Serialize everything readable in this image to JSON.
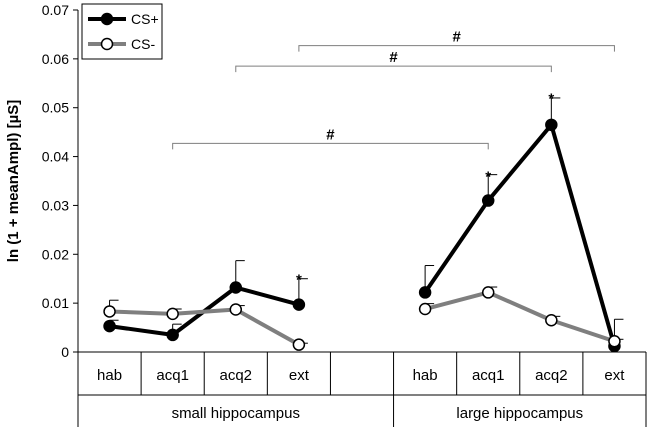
{
  "chart_data": {
    "type": "line",
    "title": "",
    "ylabel": "ln (1 + meanAmpl) [µS]",
    "ylim": [
      0,
      0.07
    ],
    "yticks": [
      0,
      0.01,
      0.02,
      0.03,
      0.04,
      0.05,
      0.06,
      0.07
    ],
    "ytick_labels": [
      "0",
      "0.01",
      "0.02",
      "0.03",
      "0.04",
      "0.05",
      "0.06",
      "0.07"
    ],
    "categories": [
      "hab",
      "acq1",
      "acq2",
      "ext",
      "",
      "hab",
      "acq1",
      "acq2",
      "ext"
    ],
    "groups": [
      {
        "label": "small hippocampus",
        "span": [
          0,
          4
        ]
      },
      {
        "label": "large hippocampus",
        "span": [
          5,
          8
        ]
      }
    ],
    "grid": false,
    "legend": {
      "placement": "top-left"
    },
    "series": [
      {
        "name": "CS+",
        "color": "#000000",
        "marker": "filled-circle",
        "segments": [
          {
            "x": [
              0,
              1,
              2,
              3
            ],
            "y": [
              0.0053,
              0.0035,
              0.0132,
              0.0097
            ],
            "err": [
              0.0012,
              0.0022,
              0.0055,
              0.0053
            ]
          },
          {
            "x": [
              5,
              6,
              7,
              8
            ],
            "y": [
              0.0122,
              0.031,
              0.0465,
              0.0012
            ],
            "err": [
              0.0055,
              0.0053,
              0.0055,
              0.0055
            ]
          }
        ]
      },
      {
        "name": "CS-",
        "color": "#7f7f7f",
        "marker": "open-circle",
        "segments": [
          {
            "x": [
              0,
              1,
              2,
              3
            ],
            "y": [
              0.0083,
              0.0078,
              0.0087,
              0.0015
            ],
            "err": [
              0.0023,
              0.001,
              0.0008,
              0.0003
            ]
          },
          {
            "x": [
              5,
              6,
              7,
              8
            ],
            "y": [
              0.0088,
              0.0122,
              0.0065,
              0.0022
            ],
            "err": [
              0.0011,
              0.0011,
              0.0008,
              0.0004
            ]
          }
        ]
      }
    ],
    "stars": [
      {
        "x": 3,
        "y": 0.0155,
        "label": "*"
      },
      {
        "x": 6,
        "y": 0.0365,
        "label": "*"
      },
      {
        "x": 7,
        "y": 0.0525,
        "label": "*"
      }
    ],
    "brackets": [
      {
        "x1": 1,
        "x2": 6,
        "y": 0.0427,
        "label": "#"
      },
      {
        "x1": 2,
        "x2": 7,
        "y": 0.0585,
        "label": "#"
      },
      {
        "x1": 3,
        "x2": 8,
        "y": 0.0627,
        "label": "#"
      }
    ]
  }
}
